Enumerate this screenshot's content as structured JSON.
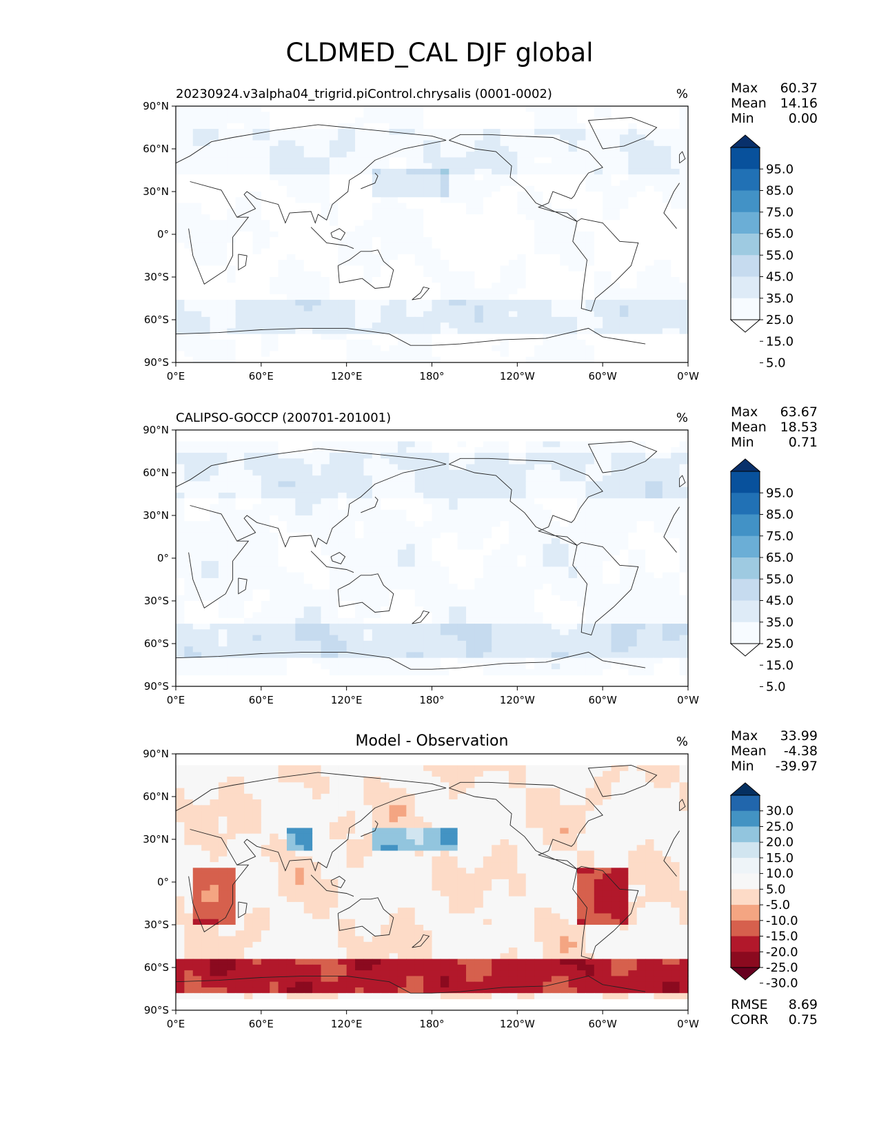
{
  "title": "CLDMED_CAL DJF global",
  "x_tick_labels": [
    "0°E",
    "60°E",
    "120°E",
    "180°",
    "120°W",
    "60°W",
    "0°W"
  ],
  "y_tick_labels": [
    "90°N",
    "60°N",
    "30°N",
    "0°",
    "30°S",
    "60°S",
    "90°S"
  ],
  "panels": [
    {
      "id": "model",
      "subtitle_left": "20230924.v3alpha04_trigrid.piControl.chrysalis (0001-0002)",
      "subtitle_center": "",
      "units": "%",
      "stats": [
        {
          "label": "Max",
          "value": "60.37"
        },
        {
          "label": "Mean",
          "value": "14.16"
        },
        {
          "label": "Min",
          "value": "0.00"
        }
      ],
      "colorbar": {
        "levels": [
          "95.0",
          "85.0",
          "75.0",
          "65.0",
          "55.0",
          "45.0",
          "35.0",
          "25.0",
          "15.0",
          "5.0"
        ],
        "colors": [
          "#08306b",
          "#08519c",
          "#2171b5",
          "#4292c6",
          "#6baed6",
          "#9ecae1",
          "#c6dbef",
          "#deebf7",
          "#f7fbff",
          "#ffffff"
        ]
      }
    },
    {
      "id": "obs",
      "subtitle_left": "CALIPSO-GOCCP (200701-201001)",
      "subtitle_center": "",
      "units": "%",
      "stats": [
        {
          "label": "Max",
          "value": "63.67"
        },
        {
          "label": "Mean",
          "value": "18.53"
        },
        {
          "label": "Min",
          "value": "0.71"
        }
      ],
      "colorbar": {
        "levels": [
          "95.0",
          "85.0",
          "75.0",
          "65.0",
          "55.0",
          "45.0",
          "35.0",
          "25.0",
          "15.0",
          "5.0"
        ],
        "colors": [
          "#08306b",
          "#08519c",
          "#2171b5",
          "#4292c6",
          "#6baed6",
          "#9ecae1",
          "#c6dbef",
          "#deebf7",
          "#f7fbff",
          "#ffffff"
        ]
      }
    },
    {
      "id": "diff",
      "subtitle_left": "",
      "subtitle_center": "Model - Observation",
      "units": "%",
      "stats": [
        {
          "label": "Max",
          "value": "33.99"
        },
        {
          "label": "Mean",
          "value": "-4.38"
        },
        {
          "label": "Min",
          "value": "-39.97"
        }
      ],
      "extra_stats": [
        {
          "label": "RMSE",
          "value": "8.69"
        },
        {
          "label": "CORR",
          "value": "0.75"
        }
      ],
      "colorbar": {
        "levels": [
          "30.0",
          "25.0",
          "20.0",
          "15.0",
          "10.0",
          "5.0",
          "-5.0",
          "-10.0",
          "-15.0",
          "-20.0",
          "-25.0",
          "-30.0"
        ],
        "colors": [
          "#053061",
          "#2166ac",
          "#4393c3",
          "#92c5de",
          "#d1e5f0",
          "#eef4f8",
          "#f7f7f7",
          "#fddbc7",
          "#f4a582",
          "#d6604d",
          "#b2182b",
          "#8b0a1f",
          "#67001f"
        ]
      }
    }
  ]
}
